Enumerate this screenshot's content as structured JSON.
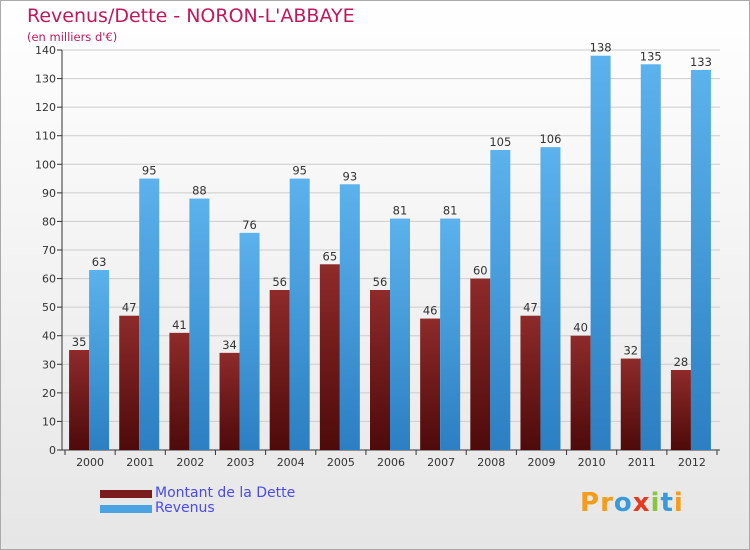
{
  "title": "Revenus/Dette - NORON-L'ABBAYE",
  "subtitle": "(en milliers d'€)",
  "colors": {
    "dette": "#7a1c1c",
    "revenus": "#4aa3e3",
    "axis": "#333333",
    "grid": "#cccccc",
    "title": "#c2185b",
    "legend_text": "#4a4aee"
  },
  "legend": [
    {
      "label": "Montant de la Dette",
      "color": "#7a1c1c"
    },
    {
      "label": "Revenus",
      "color": "#4aa3e3"
    }
  ],
  "logo": {
    "text": "Proxiti",
    "letters": [
      "P",
      "r",
      "o",
      "x",
      "i",
      "t",
      "i"
    ],
    "colors": [
      "#f59c1a",
      "#f59c1a",
      "#3a9ad9",
      "#e63a1f",
      "#8bc43f",
      "#3a9ad9",
      "#f59c1a"
    ]
  },
  "chart_data": {
    "type": "bar",
    "title": "Revenus/Dette - NORON-L'ABBAYE",
    "ylabel": "(en milliers d'€)",
    "xlabel": "",
    "categories": [
      "2000",
      "2001",
      "2002",
      "2003",
      "2004",
      "2005",
      "2006",
      "2007",
      "2008",
      "2009",
      "2010",
      "2011",
      "2012"
    ],
    "series": [
      {
        "name": "Montant de la Dette",
        "values": [
          35,
          47,
          41,
          34,
          56,
          65,
          56,
          46,
          60,
          47,
          40,
          32,
          28
        ]
      },
      {
        "name": "Revenus",
        "values": [
          63,
          95,
          88,
          76,
          95,
          93,
          81,
          81,
          105,
          106,
          138,
          135,
          133
        ]
      }
    ],
    "ylim": [
      0,
      140
    ],
    "yticks": [
      0,
      10,
      20,
      30,
      40,
      50,
      60,
      70,
      80,
      90,
      100,
      110,
      120,
      130,
      140
    ],
    "grid": true,
    "legend_position": "bottom-left"
  }
}
